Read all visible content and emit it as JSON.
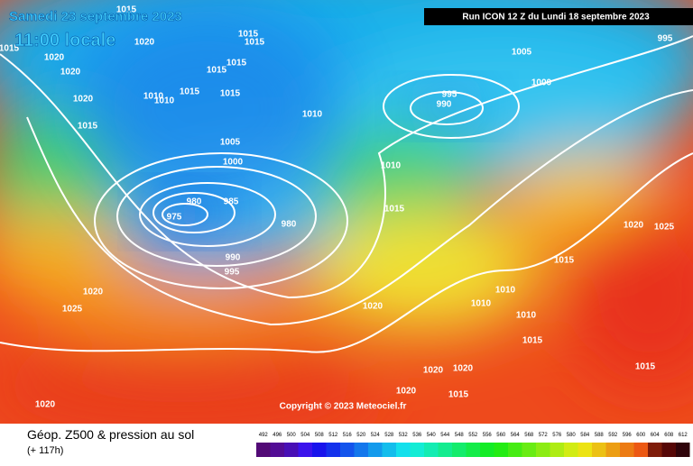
{
  "header": {
    "date": "Samedi 23 septembre 2023",
    "time": "11:00 locale",
    "run": "Run ICON 12 Z du Lundi 18 septembre 2023"
  },
  "map": {
    "pressure_labels": [
      "1015",
      "1020",
      "1015",
      "1015",
      "1015",
      "1020",
      "1020",
      "1015",
      "1015",
      "1010",
      "1010",
      "1015",
      "1015",
      "1020",
      "1015",
      "1010",
      "1005",
      "1000",
      "1005",
      "995",
      "1000",
      "995",
      "990",
      "1010",
      "980",
      "985",
      "975",
      "980",
      "990",
      "995",
      "1015",
      "1020",
      "1025",
      "1015",
      "1020",
      "1025",
      "1020",
      "1010",
      "1010",
      "1010",
      "1015",
      "1020",
      "1020",
      "1015",
      "1020",
      "1015",
      "1020"
    ],
    "copyright": "Copyright © 2023 Meteociel.fr"
  },
  "footer": {
    "legend_title": "Géop. Z500 & pression au sol",
    "lead_time": "(+ 117h)",
    "scale": [
      492,
      496,
      500,
      504,
      508,
      512,
      516,
      520,
      524,
      528,
      532,
      536,
      540,
      544,
      548,
      552,
      556,
      560,
      564,
      568,
      572,
      576,
      580,
      584,
      588,
      592,
      596,
      600,
      604,
      608,
      612
    ]
  }
}
